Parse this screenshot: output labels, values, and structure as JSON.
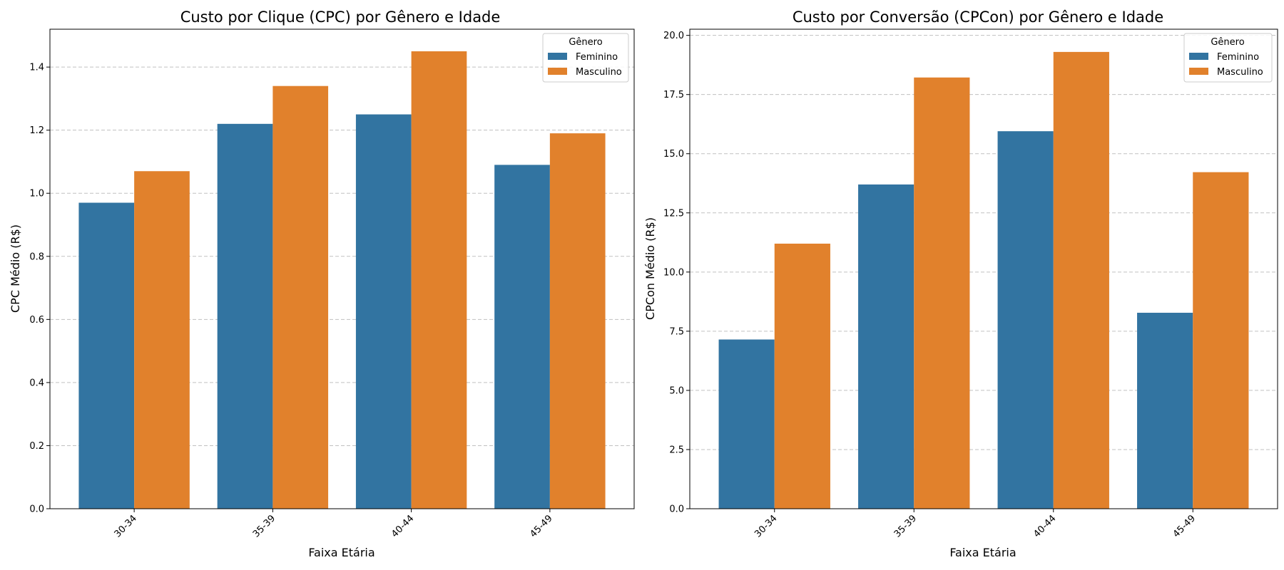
{
  "colors": {
    "feminino": "#3274a1",
    "masculino": "#e1812c",
    "grid": "#b0b0b0",
    "axis": "#000000"
  },
  "chart_data": [
    {
      "type": "bar",
      "title": "Custo por Clique (CPC) por Gênero e Idade",
      "xlabel": "Faixa Etária",
      "ylabel": "CPC Médio (R$)",
      "categories": [
        "30-34",
        "35-39",
        "40-44",
        "45-49"
      ],
      "series": [
        {
          "name": "Feminino",
          "values": [
            0.97,
            1.22,
            1.25,
            1.09
          ]
        },
        {
          "name": "Masculino",
          "values": [
            1.07,
            1.34,
            1.45,
            1.19
          ]
        }
      ],
      "ylim": [
        0,
        1.52
      ],
      "yticks": [
        "0.0",
        "0.2",
        "0.4",
        "0.6",
        "0.8",
        "1.0",
        "1.2",
        "1.4"
      ],
      "ytick_values": [
        0,
        0.2,
        0.4,
        0.6,
        0.8,
        1.0,
        1.2,
        1.4
      ],
      "grid": "horizontal dashed",
      "legend": {
        "title": "Gênero",
        "placement": "upper-right"
      }
    },
    {
      "type": "bar",
      "title": "Custo por Conversão (CPCon) por Gênero e Idade",
      "xlabel": "Faixa Etária",
      "ylabel": "CPCon Médio (R$)",
      "categories": [
        "30-34",
        "35-39",
        "40-44",
        "45-49"
      ],
      "series": [
        {
          "name": "Feminino",
          "values": [
            7.15,
            13.7,
            15.95,
            8.28
          ]
        },
        {
          "name": "Masculino",
          "values": [
            11.2,
            18.22,
            19.3,
            14.22
          ]
        }
      ],
      "ylim": [
        0,
        20.26
      ],
      "yticks": [
        "0.0",
        "2.5",
        "5.0",
        "7.5",
        "10.0",
        "12.5",
        "15.0",
        "17.5",
        "20.0"
      ],
      "ytick_values": [
        0,
        2.5,
        5.0,
        7.5,
        10.0,
        12.5,
        15.0,
        17.5,
        20.0
      ],
      "grid": "horizontal dashed",
      "legend": {
        "title": "Gênero",
        "placement": "upper-right"
      }
    }
  ]
}
